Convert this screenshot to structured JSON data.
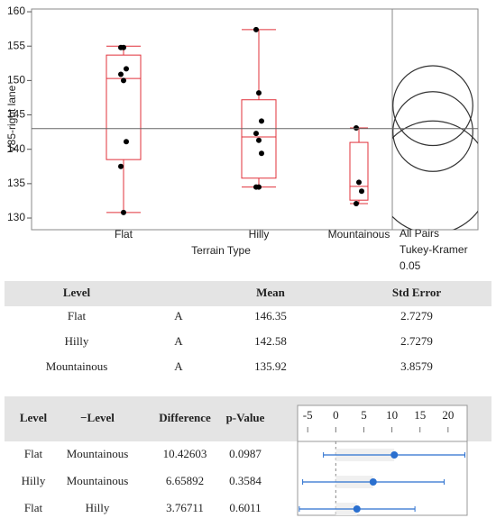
{
  "chart_data": {
    "type": "box",
    "y_label": "V85-right lane",
    "x_label": "Terrain Type",
    "categories": [
      "Flat",
      "Hilly",
      "Mountainous"
    ],
    "ylim": [
      128.3,
      160.4
    ],
    "yticks": [
      130,
      135,
      140,
      145,
      150,
      155,
      160
    ],
    "color": "#e0303a",
    "grand_mean": 143.0,
    "boxes": [
      {
        "whisker_low": 130.8,
        "q1": 138.5,
        "median": 150.3,
        "q3": 153.7,
        "whisker_high": 155.0,
        "points": [
          154.8,
          154.8,
          151.7,
          150.9,
          150.0,
          141.1,
          137.5,
          130.8
        ]
      },
      {
        "whisker_low": 134.5,
        "q1": 135.8,
        "median": 141.8,
        "q3": 147.2,
        "whisker_high": 157.4,
        "points": [
          157.4,
          148.2,
          144.1,
          142.3,
          141.3,
          139.4,
          134.5,
          134.5
        ]
      },
      {
        "whisker_low": 132.1,
        "q1": 132.6,
        "median": 134.6,
        "q3": 141.0,
        "whisker_high": 143.1,
        "points": [
          143.1,
          135.2,
          133.9,
          132.1
        ]
      }
    ],
    "comparison": {
      "labels": [
        "All Pairs",
        "Tukey-Kramer",
        "0.05"
      ],
      "radii": [
        5.8,
        5.8,
        8.2
      ]
    }
  },
  "means_table": {
    "columns": [
      "Level",
      "Mean",
      "Std Error"
    ],
    "rows": [
      [
        "Flat",
        "A",
        146.35,
        2.7279
      ],
      [
        "Hilly",
        "A",
        142.58,
        2.7279
      ],
      [
        "Mountainous",
        "A",
        135.92,
        3.8579
      ]
    ]
  },
  "comparison_table": {
    "columns": [
      "Level",
      "−Level",
      "Difference",
      "p-Value"
    ],
    "rows": [
      [
        "Flat",
        "Mountainous",
        10.42603,
        0.0987
      ],
      [
        "Hilly",
        "Mountainous",
        6.65892,
        0.3584
      ],
      [
        "Flat",
        "Hilly",
        3.76711,
        0.6011
      ]
    ],
    "xlim": [
      -6.8,
      23.4
    ],
    "xticks": [
      -5,
      0,
      5,
      10,
      15,
      20
    ],
    "color": "#2a6fcf",
    "intervals": [
      {
        "lower": -2.2,
        "upper": 23.0
      },
      {
        "lower": -5.9,
        "upper": 19.3
      },
      {
        "lower": -6.5,
        "upper": 14.1
      }
    ]
  }
}
